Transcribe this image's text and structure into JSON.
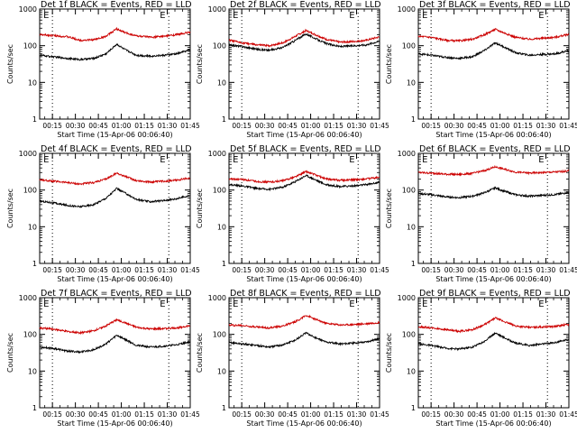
{
  "chart_data": [
    {
      "type": "line",
      "title": "Det 1f BLACK = Events, RED = LLD",
      "xlabel": "Start Time (15-Apr-06 00:06:40)",
      "ylabel": "Counts/sec",
      "yscale": "log",
      "ylim": [
        1,
        1000
      ],
      "yticks": [
        "1",
        "10",
        "100",
        "1000"
      ],
      "xticks": [
        "00:15",
        "00:30",
        "00:45",
        "01:00",
        "01:15",
        "01:30",
        "01:45"
      ],
      "xlim_min": [
        6.67,
        105
      ],
      "vlines_min": [
        15,
        91
      ],
      "markers": [
        "E",
        "E"
      ],
      "grid": false,
      "x_minutes": [
        7,
        15,
        25,
        33,
        42,
        50,
        57,
        62,
        70,
        79,
        88,
        96,
        104
      ],
      "series": [
        {
          "color": "#cc0000",
          "values": [
            200,
            190,
            175,
            140,
            145,
            180,
            290,
            230,
            185,
            170,
            180,
            200,
            230
          ]
        },
        {
          "color": "#000000",
          "values": [
            55,
            50,
            45,
            42,
            45,
            60,
            110,
            80,
            55,
            52,
            55,
            60,
            75
          ]
        }
      ]
    },
    {
      "type": "line",
      "title": "Det 2f BLACK = Events, RED = LLD",
      "xlabel": "Start Time (15-Apr-06 00:06:40)",
      "ylabel": "Counts/sec",
      "yscale": "log",
      "ylim": [
        1,
        1000
      ],
      "yticks": [
        "1",
        "10",
        "100",
        "1000"
      ],
      "xticks": [
        "00:15",
        "00:30",
        "00:45",
        "01:00",
        "01:15",
        "01:30",
        "01:45"
      ],
      "xlim_min": [
        6.67,
        105
      ],
      "vlines_min": [
        15,
        91
      ],
      "markers": [
        "E",
        "E"
      ],
      "grid": false,
      "x_minutes": [
        7,
        15,
        25,
        33,
        42,
        50,
        57,
        62,
        70,
        79,
        88,
        96,
        104
      ],
      "series": [
        {
          "color": "#cc0000",
          "values": [
            140,
            120,
            105,
            100,
            120,
            180,
            260,
            210,
            150,
            125,
            130,
            140,
            170
          ]
        },
        {
          "color": "#000000",
          "values": [
            105,
            95,
            80,
            75,
            90,
            140,
            210,
            165,
            115,
            95,
            100,
            105,
            130
          ]
        }
      ]
    },
    {
      "type": "line",
      "title": "Det 3f BLACK = Events, RED = LLD",
      "xlabel": "Start Time (15-Apr-06 00:06:40)",
      "ylabel": "Counts/sec",
      "yscale": "log",
      "ylim": [
        1,
        1000
      ],
      "yticks": [
        "1",
        "10",
        "100",
        "1000"
      ],
      "xticks": [
        "00:15",
        "00:30",
        "00:45",
        "01:00",
        "01:15",
        "01:30",
        "01:45"
      ],
      "xlim_min": [
        6.67,
        105
      ],
      "vlines_min": [
        15,
        91
      ],
      "markers": [
        "E",
        "E"
      ],
      "grid": false,
      "x_minutes": [
        7,
        15,
        25,
        33,
        42,
        50,
        57,
        62,
        70,
        79,
        88,
        96,
        104
      ],
      "series": [
        {
          "color": "#cc0000",
          "values": [
            180,
            170,
            140,
            135,
            150,
            200,
            280,
            230,
            170,
            150,
            160,
            170,
            200
          ]
        },
        {
          "color": "#000000",
          "values": [
            60,
            55,
            48,
            45,
            50,
            75,
            120,
            95,
            65,
            55,
            58,
            60,
            72
          ]
        }
      ]
    },
    {
      "type": "line",
      "title": "Det 4f BLACK = Events, RED = LLD",
      "xlabel": "Start Time (15-Apr-06 00:06:40)",
      "ylabel": "Counts/sec",
      "yscale": "log",
      "ylim": [
        1,
        1000
      ],
      "yticks": [
        "1",
        "10",
        "100",
        "1000"
      ],
      "xticks": [
        "00:15",
        "00:30",
        "00:45",
        "01:00",
        "01:15",
        "01:30",
        "01:45"
      ],
      "xlim_min": [
        6.67,
        105
      ],
      "vlines_min": [
        15,
        91
      ],
      "markers": [
        "E",
        "E"
      ],
      "grid": false,
      "x_minutes": [
        7,
        15,
        25,
        33,
        42,
        50,
        57,
        62,
        70,
        79,
        88,
        96,
        104
      ],
      "series": [
        {
          "color": "#cc0000",
          "values": [
            190,
            175,
            160,
            145,
            160,
            200,
            290,
            240,
            180,
            165,
            175,
            185,
            210
          ]
        },
        {
          "color": "#000000",
          "values": [
            50,
            45,
            38,
            35,
            40,
            60,
            110,
            85,
            55,
            48,
            52,
            58,
            70
          ]
        }
      ]
    },
    {
      "type": "line",
      "title": "Det 5f BLACK = Events, RED = LLD",
      "xlabel": "Start Time (15-Apr-06 00:06:40)",
      "ylabel": "Counts/sec",
      "yscale": "log",
      "ylim": [
        1,
        1000
      ],
      "yticks": [
        "1",
        "10",
        "100",
        "1000"
      ],
      "xticks": [
        "00:15",
        "00:30",
        "00:45",
        "01:00",
        "01:15",
        "01:30",
        "01:45"
      ],
      "xlim_min": [
        6.67,
        105
      ],
      "vlines_min": [
        15,
        91
      ],
      "markers": [
        "E",
        "E"
      ],
      "grid": false,
      "x_minutes": [
        7,
        15,
        25,
        33,
        42,
        50,
        57,
        62,
        70,
        79,
        88,
        96,
        104
      ],
      "series": [
        {
          "color": "#cc0000",
          "values": [
            200,
            195,
            170,
            165,
            180,
            230,
            320,
            270,
            200,
            185,
            190,
            200,
            220
          ]
        },
        {
          "color": "#000000",
          "values": [
            140,
            130,
            110,
            105,
            120,
            170,
            250,
            200,
            140,
            125,
            130,
            140,
            160
          ]
        }
      ]
    },
    {
      "type": "line",
      "title": "Det 6f BLACK = Events, RED = LLD",
      "xlabel": "Start Time (15-Apr-06 00:06:40)",
      "ylabel": "Counts/sec",
      "yscale": "log",
      "ylim": [
        1,
        1000
      ],
      "yticks": [
        "1",
        "10",
        "100",
        "1000"
      ],
      "xticks": [
        "00:15",
        "00:30",
        "00:45",
        "01:00",
        "01:15",
        "01:30",
        "01:45"
      ],
      "xlim_min": [
        6.67,
        105
      ],
      "vlines_min": [
        15,
        91
      ],
      "markers": [
        "E",
        "E"
      ],
      "grid": false,
      "x_minutes": [
        7,
        15,
        25,
        33,
        42,
        50,
        57,
        62,
        70,
        79,
        88,
        96,
        104
      ],
      "series": [
        {
          "color": "#cc0000",
          "values": [
            300,
            290,
            270,
            265,
            285,
            340,
            430,
            380,
            310,
            290,
            300,
            310,
            330
          ]
        },
        {
          "color": "#000000",
          "values": [
            80,
            75,
            65,
            62,
            68,
            85,
            115,
            95,
            75,
            68,
            72,
            75,
            85
          ]
        }
      ]
    },
    {
      "type": "line",
      "title": "Det 7f BLACK = Events, RED = LLD",
      "xlabel": "Start Time (15-Apr-06 00:06:40)",
      "ylabel": "Counts/sec",
      "yscale": "log",
      "ylim": [
        1,
        1000
      ],
      "yticks": [
        "1",
        "10",
        "100",
        "1000"
      ],
      "xticks": [
        "00:15",
        "00:30",
        "00:45",
        "01:00",
        "01:15",
        "01:30",
        "01:45"
      ],
      "xlim_min": [
        6.67,
        105
      ],
      "vlines_min": [
        15,
        91
      ],
      "markers": [
        "E",
        "E"
      ],
      "grid": false,
      "x_minutes": [
        7,
        15,
        25,
        33,
        42,
        50,
        57,
        62,
        70,
        79,
        88,
        96,
        104
      ],
      "series": [
        {
          "color": "#cc0000",
          "values": [
            150,
            140,
            120,
            110,
            125,
            170,
            250,
            210,
            155,
            140,
            145,
            150,
            170
          ]
        },
        {
          "color": "#000000",
          "values": [
            45,
            42,
            35,
            33,
            38,
            55,
            95,
            75,
            50,
            45,
            48,
            52,
            62
          ]
        }
      ]
    },
    {
      "type": "line",
      "title": "Det 8f BLACK = Events, RED = LLD",
      "xlabel": "Start Time (15-Apr-06 00:06:40)",
      "ylabel": "Counts/sec",
      "yscale": "log",
      "ylim": [
        1,
        1000
      ],
      "yticks": [
        "1",
        "10",
        "100",
        "1000"
      ],
      "xticks": [
        "00:15",
        "00:30",
        "00:45",
        "01:00",
        "01:15",
        "01:30",
        "01:45"
      ],
      "xlim_min": [
        6.67,
        105
      ],
      "vlines_min": [
        15,
        91
      ],
      "markers": [
        "E",
        "E"
      ],
      "grid": false,
      "x_minutes": [
        7,
        15,
        25,
        33,
        42,
        50,
        57,
        62,
        70,
        79,
        88,
        96,
        104
      ],
      "series": [
        {
          "color": "#cc0000",
          "values": [
            180,
            175,
            160,
            150,
            170,
            220,
            330,
            270,
            200,
            180,
            185,
            195,
            210
          ]
        },
        {
          "color": "#000000",
          "values": [
            60,
            55,
            50,
            45,
            52,
            70,
            110,
            85,
            62,
            55,
            58,
            62,
            75
          ]
        }
      ]
    },
    {
      "type": "line",
      "title": "Det 9f BLACK = Events, RED = LLD",
      "xlabel": "Start Time (15-Apr-06 00:06:40)",
      "ylabel": "Counts/sec",
      "yscale": "log",
      "ylim": [
        1,
        1000
      ],
      "yticks": [
        "1",
        "10",
        "100",
        "1000"
      ],
      "xticks": [
        "00:15",
        "00:30",
        "00:45",
        "01:00",
        "01:15",
        "01:30",
        "01:45"
      ],
      "xlim_min": [
        6.67,
        105
      ],
      "vlines_min": [
        15,
        91
      ],
      "markers": [
        "E",
        "E"
      ],
      "grid": false,
      "x_minutes": [
        7,
        15,
        25,
        33,
        42,
        50,
        57,
        62,
        70,
        79,
        88,
        96,
        104
      ],
      "series": [
        {
          "color": "#cc0000",
          "values": [
            160,
            150,
            135,
            120,
            135,
            185,
            280,
            230,
            170,
            155,
            160,
            165,
            185
          ]
        },
        {
          "color": "#000000",
          "values": [
            55,
            50,
            42,
            40,
            45,
            65,
            110,
            85,
            58,
            50,
            55,
            60,
            72
          ]
        }
      ]
    }
  ]
}
